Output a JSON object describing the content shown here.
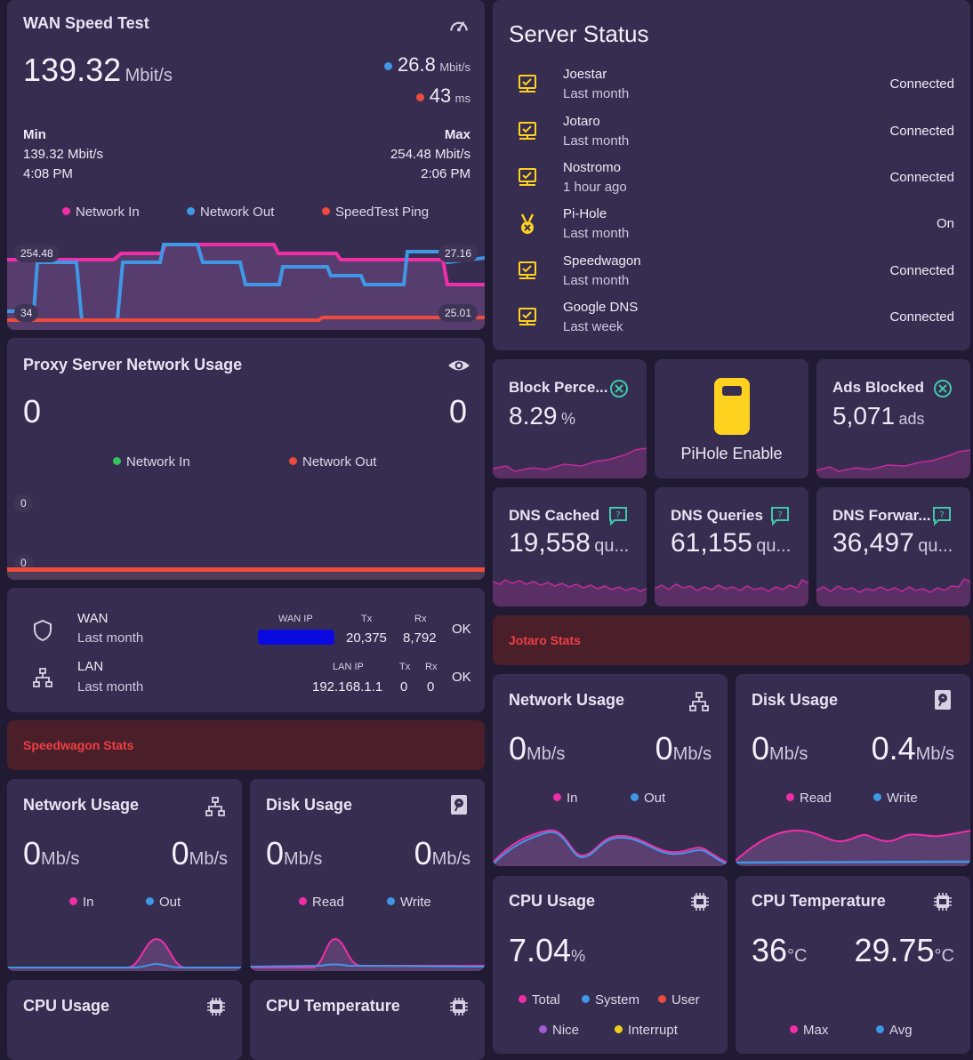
{
  "wan": {
    "title": "WAN Speed Test",
    "value": "139.32",
    "unit": "Mbit/s",
    "side1_value": "26.8",
    "side1_unit": "Mbit/s",
    "side2_value": "43",
    "side2_unit": "ms",
    "min_label": "Min",
    "min_value": "139.32 Mbit/s",
    "min_time": "4:08 PM",
    "max_label": "Max",
    "max_value": "254.48 Mbit/s",
    "max_time": "2:06 PM",
    "legend": [
      "Network In",
      "Network Out",
      "SpeedTest Ping"
    ],
    "axis_left_top": "254.48",
    "axis_left_bottom": "34",
    "axis_right_top": "27.16",
    "axis_right_bottom": "25.01"
  },
  "proxy": {
    "title": "Proxy Server Network Usage",
    "in_value": "0",
    "out_value": "0",
    "legend": [
      "Network In",
      "Network Out"
    ],
    "axis_top": "0",
    "axis_bottom": "0"
  },
  "interfaces": [
    {
      "name": "WAN",
      "sub": "Last month",
      "ip_label": "WAN IP",
      "ip": "",
      "tx_label": "Tx",
      "tx": "20,375",
      "rx_label": "Rx",
      "rx": "8,792",
      "status": "OK"
    },
    {
      "name": "LAN",
      "sub": "Last month",
      "ip_label": "LAN IP",
      "ip": "192.168.1.1",
      "tx_label": "Tx",
      "tx": "0",
      "rx_label": "Rx",
      "rx": "0",
      "status": "OK"
    }
  ],
  "speedwagon_banner": "Speedwagon Stats",
  "jotaro_banner": "Jotaro Stats",
  "sw_net": {
    "title": "Network Usage",
    "v1": "0",
    "u1": "Mb/s",
    "v2": "0",
    "u2": "Mb/s",
    "legend": [
      "In",
      "Out"
    ]
  },
  "sw_disk": {
    "title": "Disk Usage",
    "v1": "0",
    "u1": "Mb/s",
    "v2": "0",
    "u2": "Mb/s",
    "legend": [
      "Read",
      "Write"
    ]
  },
  "sw_cpu": {
    "title": "CPU Usage"
  },
  "sw_temp": {
    "title": "CPU Temperature"
  },
  "server_status": {
    "title": "Server Status",
    "rows": [
      {
        "name": "Joestar",
        "sub": "Last month",
        "status": "Connected",
        "icon": "server-icon"
      },
      {
        "name": "Jotaro",
        "sub": "Last month",
        "status": "Connected",
        "icon": "server-icon"
      },
      {
        "name": "Nostromo",
        "sub": "1 hour ago",
        "status": "Connected",
        "icon": "server-icon"
      },
      {
        "name": "Pi-Hole",
        "sub": "Last month",
        "status": "On",
        "icon": "medal-icon"
      },
      {
        "name": "Speedwagon",
        "sub": "Last month",
        "status": "Connected",
        "icon": "server-icon"
      },
      {
        "name": "Google DNS",
        "sub": "Last week",
        "status": "Connected",
        "icon": "server-icon"
      }
    ]
  },
  "pihole": {
    "block_title": "Block Perce...",
    "block_value": "8.29",
    "block_unit": "%",
    "enable_label": "PiHole Enable",
    "ads_title": "Ads Blocked",
    "ads_value": "5,071",
    "ads_unit": "ads",
    "cached_title": "DNS Cached",
    "cached_value": "19,558",
    "cached_unit": "qu...",
    "queries_title": "DNS Queries",
    "queries_value": "61,155",
    "queries_unit": "qu...",
    "forward_title": "DNS Forwar...",
    "forward_value": "36,497",
    "forward_unit": "qu..."
  },
  "jo_net": {
    "title": "Network Usage",
    "v1": "0",
    "u1": "Mb/s",
    "v2": "0",
    "u2": "Mb/s",
    "legend": [
      "In",
      "Out"
    ]
  },
  "jo_disk": {
    "title": "Disk Usage",
    "v1": "0",
    "u1": "Mb/s",
    "v2": "0.4",
    "u2": "Mb/s",
    "legend": [
      "Read",
      "Write"
    ]
  },
  "jo_cpu": {
    "title": "CPU Usage",
    "value": "7.04",
    "unit": "%",
    "legend": [
      "Total",
      "System",
      "User",
      "Nice",
      "Interrupt"
    ]
  },
  "jo_temp": {
    "title": "CPU Temperature",
    "v1": "36",
    "u1": "°C",
    "v2": "29.75",
    "u2": "°C",
    "legend": [
      "Max",
      "Avg"
    ]
  },
  "colors": {
    "pink": "#f02ea8",
    "blue": "#3f97e6",
    "red": "#ec4b3d",
    "green": "#34c25d",
    "yellow": "#f0cf1a",
    "teal": "#3fc8a8"
  }
}
